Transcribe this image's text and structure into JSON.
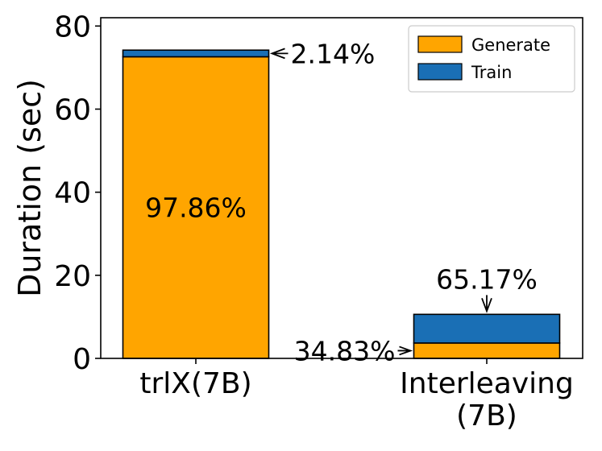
{
  "chart_data": {
    "type": "bar",
    "stacked": true,
    "categories": [
      [
        "trlX(7B)"
      ],
      [
        "Interleaving",
        "(7B)"
      ]
    ],
    "series": [
      {
        "name": "Generate",
        "color": "#ffa500",
        "values": [
          72.6,
          3.7
        ]
      },
      {
        "name": "Train",
        "color": "#1a6fb5",
        "values": [
          1.6,
          6.9
        ]
      }
    ],
    "ylabel": "Duration (sec)",
    "ylim": [
      0,
      82
    ],
    "yticks": [
      0,
      20,
      40,
      60,
      80
    ],
    "legend": "top-right",
    "grid": false,
    "annotations": [
      {
        "text": "97.86%",
        "category": 0,
        "series": 0,
        "style": "inside"
      },
      {
        "text": "2.14%",
        "category": 0,
        "series": 1,
        "style": "arrow-right"
      },
      {
        "text": "65.17%",
        "category": 1,
        "series": 1,
        "style": "arrow-above"
      },
      {
        "text": "34.83%",
        "category": 1,
        "series": 0,
        "style": "arrow-left"
      }
    ]
  }
}
